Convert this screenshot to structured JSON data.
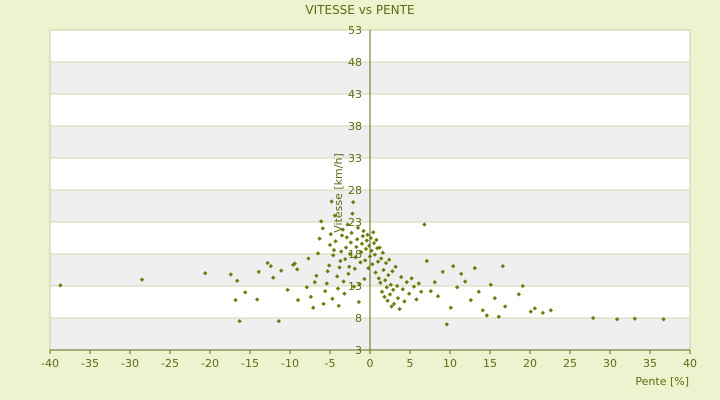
{
  "chart_data": {
    "type": "scatter",
    "title": "VITESSE vs PENTE",
    "xlabel": "Pente [%]",
    "ylabel": "Vitesse [km/h]",
    "xlim": [
      -40,
      40
    ],
    "ylim": [
      3,
      53
    ],
    "x_ticks": [
      "-40",
      "-35",
      "-30",
      "-25",
      "-20",
      "-15",
      "-10",
      "-5",
      "0",
      "5",
      "10",
      "15",
      "20",
      "25",
      "30",
      "35",
      "40"
    ],
    "y_ticks": [
      "3",
      "8",
      "13",
      "18",
      "23",
      "28",
      "33",
      "38",
      "43",
      "48",
      "53"
    ],
    "grid": true,
    "band_colors": [
      "#ffffff",
      "#efefef"
    ],
    "marker_color": "#6b7d0e",
    "points": [
      [
        -38.7,
        13.1
      ],
      [
        -28.5,
        14.0
      ],
      [
        -20.6,
        15.0
      ],
      [
        -17.4,
        14.8
      ],
      [
        -16.8,
        10.8
      ],
      [
        -16.3,
        7.5
      ],
      [
        -16.6,
        13.8
      ],
      [
        -15.6,
        12.0
      ],
      [
        -14.1,
        10.9
      ],
      [
        -13.9,
        15.2
      ],
      [
        -12.8,
        16.6
      ],
      [
        -12.4,
        16.1
      ],
      [
        -12.1,
        14.3
      ],
      [
        -11.4,
        7.5
      ],
      [
        -11.1,
        15.4
      ],
      [
        -10.3,
        12.4
      ],
      [
        -9.6,
        16.3
      ],
      [
        -9.4,
        16.5
      ],
      [
        -9.1,
        15.6
      ],
      [
        -9.0,
        10.8
      ],
      [
        -7.9,
        12.8
      ],
      [
        -7.7,
        17.3
      ],
      [
        -7.4,
        11.3
      ],
      [
        -7.1,
        9.6
      ],
      [
        -6.9,
        13.6
      ],
      [
        -6.7,
        14.6
      ],
      [
        -6.5,
        18.1
      ],
      [
        -6.3,
        20.4
      ],
      [
        -6.1,
        23.1
      ],
      [
        -5.9,
        22.0
      ],
      [
        -5.8,
        10.2
      ],
      [
        -5.6,
        12.2
      ],
      [
        -5.4,
        13.4
      ],
      [
        -5.3,
        15.3
      ],
      [
        -5.1,
        16.2
      ],
      [
        -5.0,
        19.4
      ],
      [
        -4.9,
        21.1
      ],
      [
        -4.8,
        26.2
      ],
      [
        -4.7,
        11.0
      ],
      [
        -4.6,
        17.8
      ],
      [
        -4.5,
        18.6
      ],
      [
        -4.4,
        24.0
      ],
      [
        -4.3,
        20.0
      ],
      [
        -4.1,
        14.5
      ],
      [
        -4.0,
        12.6
      ],
      [
        -3.9,
        9.9
      ],
      [
        -3.8,
        15.9
      ],
      [
        -3.7,
        16.9
      ],
      [
        -3.6,
        18.4
      ],
      [
        -3.5,
        20.9
      ],
      [
        -3.4,
        21.8
      ],
      [
        -3.3,
        13.7
      ],
      [
        -3.2,
        11.8
      ],
      [
        -3.1,
        17.2
      ],
      [
        -3.0,
        19.0
      ],
      [
        -2.9,
        20.6
      ],
      [
        -2.8,
        22.6
      ],
      [
        -2.7,
        14.9
      ],
      [
        -2.6,
        16.0
      ],
      [
        -2.5,
        18.0
      ],
      [
        -2.4,
        19.8
      ],
      [
        -2.3,
        21.3
      ],
      [
        -2.2,
        24.3
      ],
      [
        -2.1,
        26.1
      ],
      [
        -2.0,
        12.9
      ],
      [
        -1.9,
        15.7
      ],
      [
        -1.8,
        17.5
      ],
      [
        -1.7,
        19.1
      ],
      [
        -1.6,
        20.3
      ],
      [
        -1.5,
        22.1
      ],
      [
        -1.4,
        10.5
      ],
      [
        -1.3,
        13.3
      ],
      [
        -1.2,
        16.7
      ],
      [
        -1.1,
        18.3
      ],
      [
        -1.0,
        19.6
      ],
      [
        -0.9,
        20.8
      ],
      [
        -0.8,
        21.6
      ],
      [
        -0.7,
        14.1
      ],
      [
        -0.6,
        17.0
      ],
      [
        -0.5,
        18.8
      ],
      [
        -0.4,
        20.1
      ],
      [
        -0.3,
        21.0
      ],
      [
        -0.2,
        15.8
      ],
      [
        -0.1,
        19.3
      ],
      [
        0.0,
        17.6
      ],
      [
        0.1,
        20.5
      ],
      [
        0.2,
        18.5
      ],
      [
        0.3,
        16.4
      ],
      [
        0.4,
        21.4
      ],
      [
        0.5,
        19.7
      ],
      [
        0.6,
        17.9
      ],
      [
        0.7,
        15.1
      ],
      [
        0.8,
        20.2
      ],
      [
        0.9,
        18.9
      ],
      [
        1.0,
        16.8
      ],
      [
        1.1,
        14.2
      ],
      [
        1.2,
        19.0
      ],
      [
        1.3,
        13.5
      ],
      [
        1.4,
        17.3
      ],
      [
        1.5,
        12.1
      ],
      [
        1.6,
        18.2
      ],
      [
        1.7,
        15.5
      ],
      [
        1.8,
        11.3
      ],
      [
        1.9,
        13.9
      ],
      [
        2.0,
        16.6
      ],
      [
        2.1,
        12.8
      ],
      [
        2.2,
        10.7
      ],
      [
        2.3,
        14.7
      ],
      [
        2.4,
        17.1
      ],
      [
        2.5,
        11.7
      ],
      [
        2.6,
        13.2
      ],
      [
        2.7,
        9.8
      ],
      [
        2.8,
        15.3
      ],
      [
        2.9,
        12.4
      ],
      [
        3.0,
        10.2
      ],
      [
        3.2,
        16.0
      ],
      [
        3.4,
        13.0
      ],
      [
        3.5,
        11.1
      ],
      [
        3.7,
        9.4
      ],
      [
        3.9,
        14.4
      ],
      [
        4.1,
        12.5
      ],
      [
        4.3,
        10.6
      ],
      [
        4.6,
        13.6
      ],
      [
        4.9,
        11.8
      ],
      [
        5.2,
        14.2
      ],
      [
        5.5,
        12.9
      ],
      [
        5.8,
        10.9
      ],
      [
        6.1,
        13.4
      ],
      [
        6.4,
        12.1
      ],
      [
        6.8,
        22.6
      ],
      [
        7.1,
        16.9
      ],
      [
        7.6,
        12.2
      ],
      [
        8.1,
        13.6
      ],
      [
        8.5,
        11.4
      ],
      [
        9.1,
        15.2
      ],
      [
        9.6,
        7.0
      ],
      [
        10.1,
        9.6
      ],
      [
        10.4,
        16.1
      ],
      [
        10.9,
        12.8
      ],
      [
        11.4,
        14.9
      ],
      [
        11.9,
        13.7
      ],
      [
        12.6,
        10.8
      ],
      [
        13.1,
        15.8
      ],
      [
        13.6,
        12.1
      ],
      [
        14.1,
        9.2
      ],
      [
        14.6,
        8.4
      ],
      [
        15.1,
        13.2
      ],
      [
        15.6,
        11.1
      ],
      [
        16.1,
        8.2
      ],
      [
        16.6,
        16.1
      ],
      [
        16.9,
        9.8
      ],
      [
        18.6,
        11.7
      ],
      [
        19.1,
        13.0
      ],
      [
        20.1,
        9.0
      ],
      [
        20.6,
        9.5
      ],
      [
        21.6,
        8.8
      ],
      [
        22.6,
        9.2
      ],
      [
        27.9,
        8.0
      ],
      [
        30.9,
        7.8
      ],
      [
        33.1,
        7.9
      ],
      [
        36.7,
        7.8
      ]
    ]
  }
}
